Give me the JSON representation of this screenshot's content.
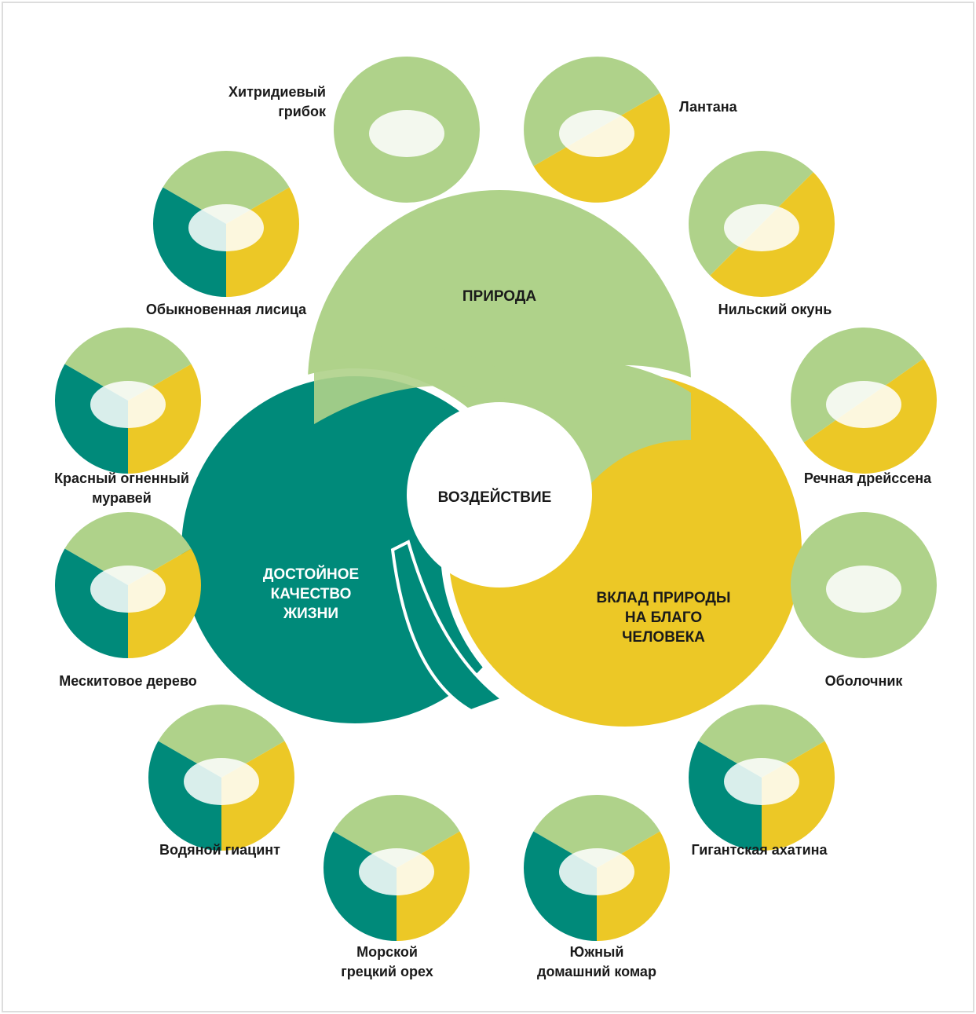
{
  "center": {
    "nature": "ПРИРОДА",
    "impact": "ВОЗДЕЙСТВИЕ",
    "quality": [
      "ДОСТОЙНОЕ",
      "КАЧЕСТВО",
      "ЖИЗНИ"
    ],
    "contributions": [
      "ВКЛАД ПРИРОДЫ",
      "НА БЛАГО",
      "ЧЕЛОВЕКА"
    ]
  },
  "nodes": [
    {
      "label": [
        "Хитридиевый",
        "грибок"
      ]
    },
    {
      "label": [
        "Лантана"
      ]
    },
    {
      "label": [
        "Нильский окунь"
      ]
    },
    {
      "label": [
        "Речная дрейссена"
      ]
    },
    {
      "label": [
        "Оболочник"
      ]
    },
    {
      "label": [
        "Гигантская ахатина"
      ]
    },
    {
      "label": [
        "Южный",
        "домашний комар"
      ]
    },
    {
      "label": [
        "Морской",
        "грецкий орех"
      ]
    },
    {
      "label": [
        "Водяной гиацинт"
      ]
    },
    {
      "label": [
        "Мескитовое дерево"
      ]
    },
    {
      "label": [
        "Красный огненный",
        "муравей"
      ]
    },
    {
      "label": [
        "Обыкновенная лисица"
      ]
    }
  ]
}
